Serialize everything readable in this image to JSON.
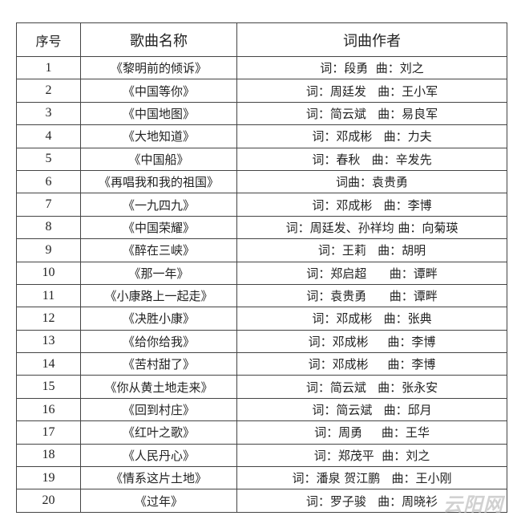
{
  "headers": [
    "序号",
    "歌曲名称",
    "词曲作者"
  ],
  "rows": [
    {
      "no": "1",
      "song": "《黎明前的倾诉》",
      "credits": "词：段勇  曲：刘之"
    },
    {
      "no": "2",
      "song": "《中国等你》",
      "credits": "词：周廷发   曲：王小军"
    },
    {
      "no": "3",
      "song": "《中国地图》",
      "credits": "词：简云斌   曲：易良军"
    },
    {
      "no": "4",
      "song": "《大地知道》",
      "credits": "词：邓成彬   曲：力夫"
    },
    {
      "no": "5",
      "song": "《中国船》",
      "credits": "词：春秋   曲：辛发先"
    },
    {
      "no": "6",
      "song": "《再唱我和我的祖国》",
      "credits": "词曲：袁贵勇"
    },
    {
      "no": "7",
      "song": "《一九四九》",
      "credits": "词：邓成彬   曲：李博"
    },
    {
      "no": "8",
      "song": "《中国荣耀》",
      "credits": "词：周廷发、孙祥均 曲：向菊瑛"
    },
    {
      "no": "9",
      "song": "《醉在三峡》",
      "credits": "词：王莉   曲：胡明"
    },
    {
      "no": "10",
      "song": "《那一年》",
      "credits": "词：郑启超      曲：谭畔"
    },
    {
      "no": "11",
      "song": "《小康路上一起走》",
      "credits": "词：袁贵勇      曲：谭畔"
    },
    {
      "no": "12",
      "song": "《决胜小康》",
      "credits": "词：邓成彬   曲：张典"
    },
    {
      "no": "13",
      "song": "《给你给我》",
      "credits": "词：邓成彬     曲：李博"
    },
    {
      "no": "14",
      "song": "《苦村甜了》",
      "credits": "词：邓成彬     曲：李博"
    },
    {
      "no": "15",
      "song": "《你从黄土地走来》",
      "credits": "词：简云斌   曲：张永安"
    },
    {
      "no": "16",
      "song": "《回到村庄》",
      "credits": "词：简云斌   曲：邱月"
    },
    {
      "no": "17",
      "song": "《红叶之歌》",
      "credits": "词：周勇     曲：王华"
    },
    {
      "no": "18",
      "song": "《人民丹心》",
      "credits": "词：郑茂平  曲：刘之"
    },
    {
      "no": "19",
      "song": "《情系这片土地》",
      "credits": "词：潘泉 贺江鹏   曲：王小刚"
    },
    {
      "no": "20",
      "song": "《过年》",
      "credits": "词：罗子骏   曲：周晓衫"
    }
  ],
  "watermark": "云阳网"
}
